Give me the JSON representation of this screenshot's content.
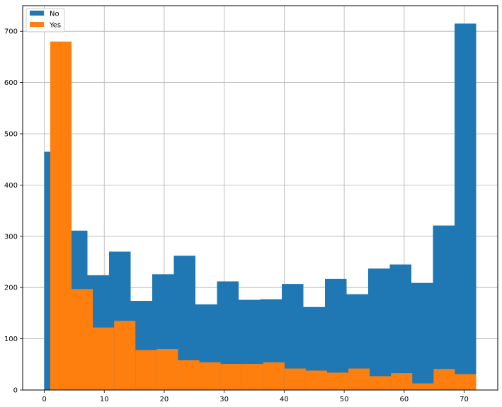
{
  "chart_data": {
    "type": "bar",
    "subtype": "histogram-overlay",
    "title": "",
    "xlabel": "",
    "ylabel": "",
    "xlim": [
      -3.6,
      75.6
    ],
    "ylim": [
      0,
      750
    ],
    "grid": true,
    "legend_position": "upper-left",
    "x_ticks": [
      0,
      10,
      20,
      30,
      40,
      50,
      60,
      70
    ],
    "y_ticks": [
      0,
      100,
      200,
      300,
      400,
      500,
      600,
      700
    ],
    "series": [
      {
        "name": "No",
        "color": "#1f77b4",
        "bin_start": 0,
        "bin_end": 72,
        "bin_count": 20,
        "counts": [
          465,
          311,
          224,
          270,
          174,
          226,
          262,
          167,
          212,
          176,
          177,
          207,
          162,
          217,
          187,
          237,
          245,
          209,
          321,
          715
        ]
      },
      {
        "name": "Yes",
        "color": "#ff7f0e",
        "bin_start": 1,
        "bin_end": 72,
        "bin_count": 20,
        "counts": [
          680,
          197,
          122,
          135,
          78,
          80,
          58,
          54,
          51,
          51,
          54,
          42,
          38,
          34,
          42,
          27,
          33,
          13,
          41,
          31
        ]
      }
    ]
  }
}
